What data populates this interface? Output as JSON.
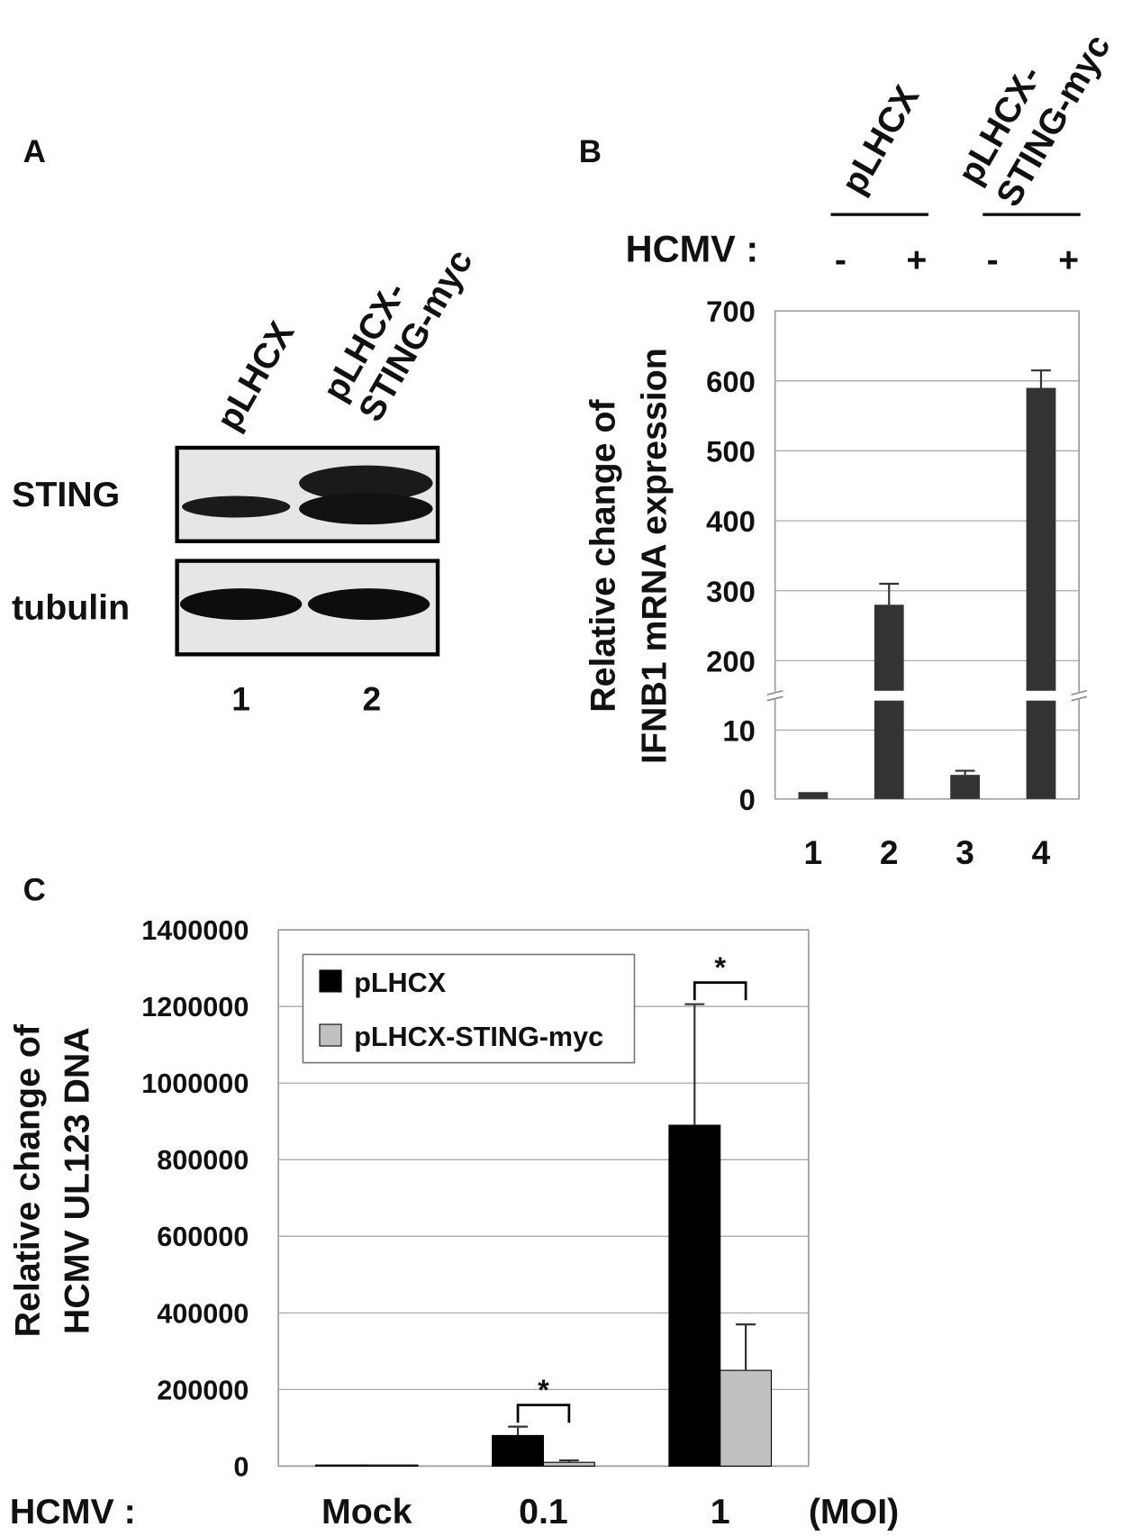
{
  "blot": {
    "label": "A",
    "rows": [
      "STING",
      "tubulin"
    ],
    "lanes": [
      {
        "label_lines": [
          "pLHCX"
        ],
        "number": "1"
      },
      {
        "label_lines": [
          "pLHCX-",
          "STING-myc"
        ],
        "number": "2"
      }
    ]
  },
  "chart_data": [
    {
      "type": "broken_bar",
      "panel_label": "B",
      "y_label_lines": [
        "Relative change of",
        "IFNB1 mRNA expression"
      ],
      "categories": [
        "1",
        "2",
        "3",
        "4"
      ],
      "values": [
        1,
        280,
        3.5,
        590
      ],
      "errors": [
        null,
        30,
        0.6,
        25
      ],
      "color": "#333333",
      "ylim": [
        0,
        700
      ],
      "axis_break": [
        15,
        150
      ],
      "yticks": [
        0,
        10,
        200,
        300,
        400,
        500,
        600,
        700
      ],
      "grid": true,
      "condition_label": "HCMV :",
      "conditions": [
        "-",
        "+",
        "-",
        "+"
      ],
      "groups": [
        {
          "label_lines": [
            "pLHCX"
          ],
          "members": [
            "1",
            "2"
          ]
        },
        {
          "label_lines": [
            "pLHCX-",
            "STING-myc"
          ],
          "members": [
            "3",
            "4"
          ]
        }
      ]
    },
    {
      "type": "grouped_bar",
      "panel_label": "C",
      "y_label_lines": [
        "Relative change of",
        "HCMV UL123 DNA"
      ],
      "x_prefix": "HCMV :",
      "x_suffix": "(MOI)",
      "categories": [
        "Mock",
        "0.1",
        "1"
      ],
      "series": [
        {
          "name": "pLHCX",
          "color": "#000000",
          "values": [
            3000,
            80000,
            890000
          ],
          "errors": [
            null,
            23000,
            316000
          ]
        },
        {
          "name": "pLHCX-STING-myc",
          "color": "#c0c0c0",
          "values": [
            3000,
            10000,
            250000
          ],
          "errors": [
            null,
            5000,
            120000
          ]
        }
      ],
      "ylim": [
        0,
        1400000
      ],
      "yticks": [
        0,
        200000,
        400000,
        600000,
        800000,
        1000000,
        1200000,
        1400000
      ],
      "grid": true,
      "legend": "upper-left",
      "significance": [
        {
          "category": "0.1",
          "label": "*"
        },
        {
          "category": "1",
          "label": "*"
        }
      ]
    }
  ]
}
